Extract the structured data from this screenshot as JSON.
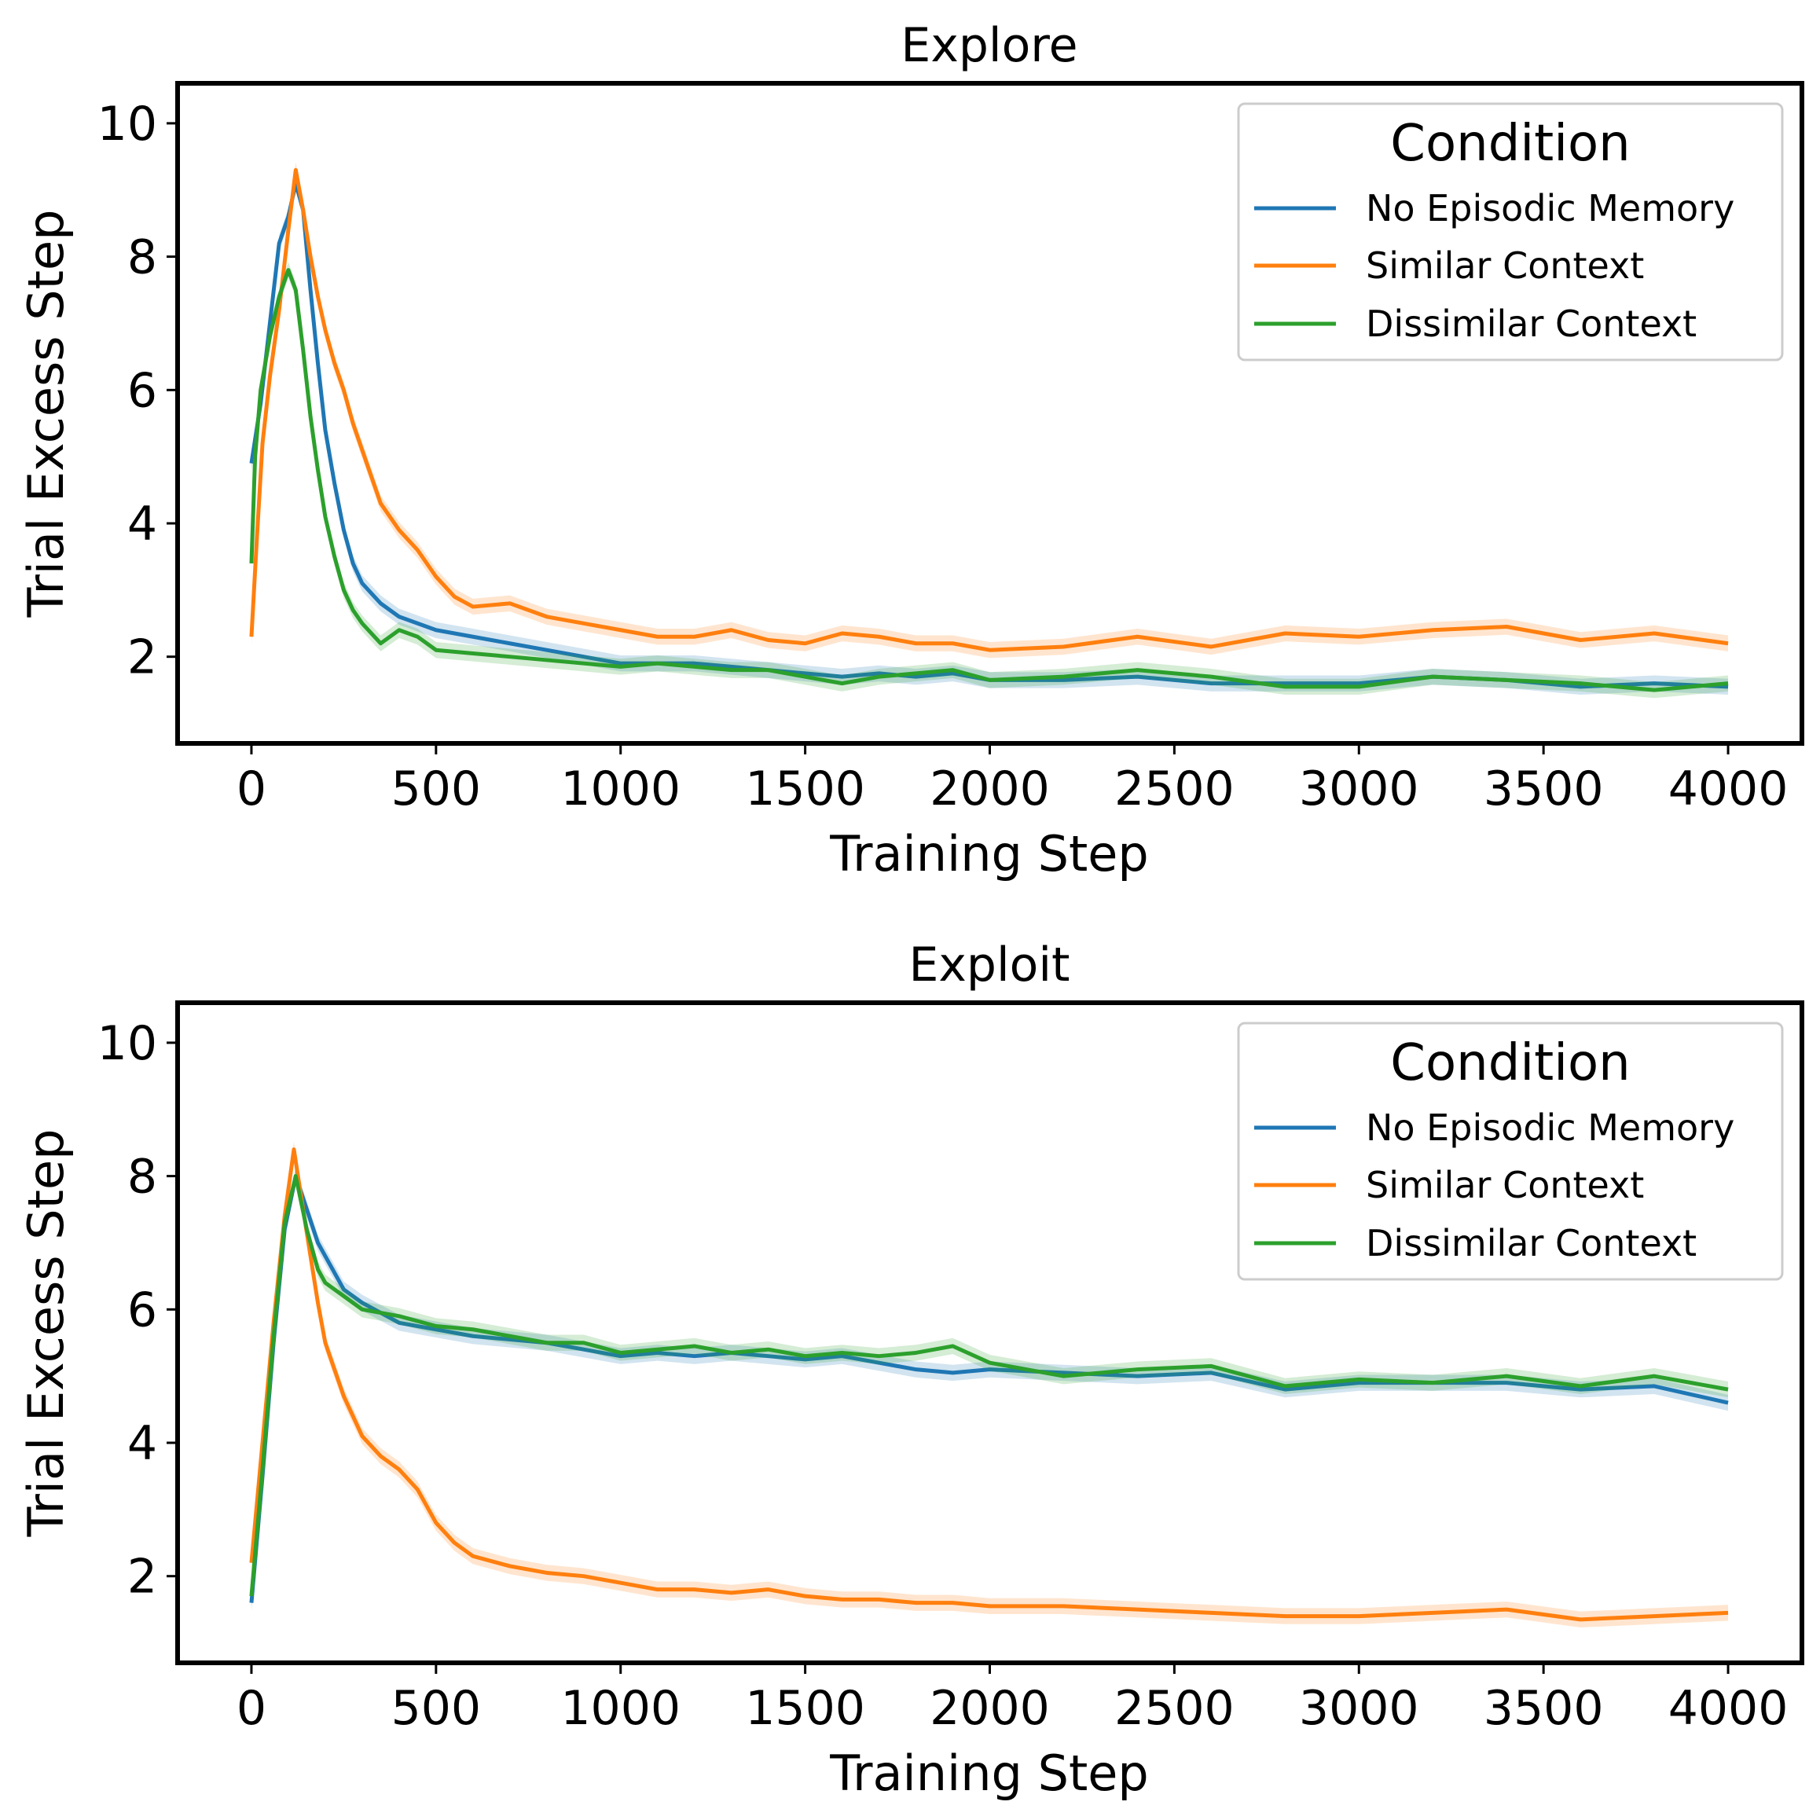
{
  "colors": {
    "no_episodic": "#1f77b4",
    "similar": "#ff7f0e",
    "dissimilar": "#2ca02c"
  },
  "chart_data": [
    {
      "type": "line",
      "title": "Explore",
      "xlabel": "Training Step",
      "ylabel": "Trial Excess Step",
      "xlim": [
        -200,
        4200
      ],
      "ylim": [
        0.7,
        10.6
      ],
      "xticks": [
        "0",
        "500",
        "1000",
        "1500",
        "2000",
        "2500",
        "3000",
        "3500",
        "4000"
      ],
      "yticks": [
        "2",
        "4",
        "6",
        "8",
        "10"
      ],
      "legend": {
        "title": "Condition",
        "position": "top-right"
      },
      "series": [
        {
          "name": "No Episodic Memory",
          "color": "no_episodic",
          "x": [
            0,
            25,
            50,
            75,
            100,
            120,
            140,
            160,
            180,
            200,
            225,
            250,
            275,
            300,
            350,
            400,
            450,
            500,
            600,
            700,
            800,
            900,
            1000,
            1100,
            1200,
            1300,
            1400,
            1500,
            1600,
            1700,
            1800,
            1900,
            2000,
            2200,
            2400,
            2600,
            2800,
            3000,
            3200,
            3400,
            3600,
            3800,
            4000
          ],
          "y": [
            4.9,
            5.8,
            7.0,
            8.2,
            8.6,
            9.1,
            8.7,
            7.5,
            6.4,
            5.4,
            4.6,
            3.9,
            3.4,
            3.1,
            2.8,
            2.6,
            2.5,
            2.4,
            2.3,
            2.2,
            2.1,
            2.0,
            1.9,
            1.9,
            1.9,
            1.85,
            1.8,
            1.75,
            1.7,
            1.75,
            1.7,
            1.75,
            1.65,
            1.65,
            1.7,
            1.6,
            1.6,
            1.6,
            1.7,
            1.65,
            1.55,
            1.6,
            1.55
          ]
        },
        {
          "name": "Similar Context",
          "color": "similar",
          "x": [
            0,
            15,
            30,
            50,
            75,
            100,
            120,
            140,
            160,
            180,
            200,
            225,
            250,
            275,
            300,
            350,
            400,
            450,
            500,
            550,
            600,
            700,
            800,
            900,
            1000,
            1100,
            1200,
            1300,
            1400,
            1500,
            1600,
            1700,
            1800,
            1900,
            2000,
            2200,
            2400,
            2600,
            2800,
            3000,
            3200,
            3400,
            3600,
            3800,
            4000
          ],
          "y": [
            2.3,
            3.8,
            5.2,
            6.2,
            7.2,
            8.4,
            9.3,
            8.7,
            8.0,
            7.4,
            6.9,
            6.4,
            6.0,
            5.5,
            5.1,
            4.3,
            3.9,
            3.6,
            3.2,
            2.9,
            2.75,
            2.8,
            2.6,
            2.5,
            2.4,
            2.3,
            2.3,
            2.4,
            2.25,
            2.2,
            2.35,
            2.3,
            2.2,
            2.2,
            2.1,
            2.15,
            2.3,
            2.15,
            2.35,
            2.3,
            2.4,
            2.45,
            2.25,
            2.35,
            2.2
          ]
        },
        {
          "name": "Dissimilar Context",
          "color": "dissimilar",
          "x": [
            0,
            10,
            25,
            50,
            75,
            100,
            120,
            140,
            160,
            180,
            200,
            225,
            250,
            275,
            300,
            350,
            400,
            450,
            500,
            600,
            700,
            800,
            900,
            1000,
            1100,
            1200,
            1300,
            1400,
            1500,
            1600,
            1700,
            1800,
            1900,
            2000,
            2200,
            2400,
            2600,
            2800,
            3000,
            3200,
            3400,
            3600,
            3800,
            4000
          ],
          "y": [
            3.4,
            5.0,
            6.0,
            6.8,
            7.4,
            7.8,
            7.5,
            6.6,
            5.6,
            4.8,
            4.1,
            3.5,
            3.0,
            2.7,
            2.5,
            2.2,
            2.4,
            2.3,
            2.1,
            2.05,
            2.0,
            1.95,
            1.9,
            1.85,
            1.9,
            1.85,
            1.8,
            1.8,
            1.7,
            1.6,
            1.7,
            1.75,
            1.8,
            1.65,
            1.7,
            1.8,
            1.7,
            1.55,
            1.55,
            1.7,
            1.65,
            1.6,
            1.5,
            1.6
          ]
        }
      ]
    },
    {
      "type": "line",
      "title": "Exploit",
      "xlabel": "Training Step",
      "ylabel": "Trial Excess Step",
      "xlim": [
        -200,
        4200
      ],
      "ylim": [
        0.7,
        10.6
      ],
      "xticks": [
        "0",
        "500",
        "1000",
        "1500",
        "2000",
        "2500",
        "3000",
        "3500",
        "4000"
      ],
      "yticks": [
        "2",
        "4",
        "6",
        "8",
        "10"
      ],
      "legend": {
        "title": "Condition",
        "position": "top-right"
      },
      "series": [
        {
          "name": "No Episodic Memory",
          "color": "no_episodic",
          "x": [
            0,
            30,
            60,
            90,
            120,
            150,
            180,
            200,
            250,
            300,
            400,
            500,
            600,
            700,
            800,
            900,
            1000,
            1100,
            1200,
            1300,
            1400,
            1500,
            1600,
            1700,
            1800,
            1900,
            2000,
            2200,
            2400,
            2600,
            2800,
            3000,
            3200,
            3400,
            3600,
            3800,
            4000
          ],
          "y": [
            1.6,
            3.5,
            5.5,
            7.2,
            8.0,
            7.5,
            7.0,
            6.8,
            6.3,
            6.1,
            5.8,
            5.7,
            5.6,
            5.55,
            5.5,
            5.4,
            5.3,
            5.35,
            5.3,
            5.35,
            5.3,
            5.25,
            5.3,
            5.2,
            5.1,
            5.05,
            5.1,
            5.05,
            5.0,
            5.05,
            4.8,
            4.9,
            4.9,
            4.9,
            4.8,
            4.85,
            4.6
          ]
        },
        {
          "name": "Similar Context",
          "color": "similar",
          "x": [
            0,
            30,
            60,
            90,
            115,
            140,
            160,
            180,
            200,
            225,
            250,
            275,
            300,
            350,
            400,
            450,
            500,
            550,
            600,
            700,
            800,
            900,
            1000,
            1100,
            1200,
            1300,
            1400,
            1500,
            1600,
            1700,
            1800,
            1900,
            2000,
            2200,
            2400,
            2600,
            2800,
            3000,
            3200,
            3400,
            3600,
            3800,
            4000
          ],
          "y": [
            2.2,
            4.0,
            5.8,
            7.4,
            8.4,
            7.5,
            6.8,
            6.1,
            5.5,
            5.1,
            4.7,
            4.4,
            4.1,
            3.8,
            3.6,
            3.3,
            2.8,
            2.5,
            2.3,
            2.15,
            2.05,
            2.0,
            1.9,
            1.8,
            1.8,
            1.75,
            1.8,
            1.7,
            1.65,
            1.65,
            1.6,
            1.6,
            1.55,
            1.55,
            1.5,
            1.45,
            1.4,
            1.4,
            1.45,
            1.5,
            1.35,
            1.4,
            1.45
          ]
        },
        {
          "name": "Dissimilar Context",
          "color": "dissimilar",
          "x": [
            0,
            30,
            60,
            90,
            120,
            150,
            180,
            200,
            250,
            300,
            400,
            500,
            600,
            700,
            800,
            900,
            1000,
            1100,
            1200,
            1300,
            1400,
            1500,
            1600,
            1700,
            1800,
            1900,
            2000,
            2200,
            2400,
            2600,
            2800,
            3000,
            3200,
            3400,
            3600,
            3800,
            4000
          ],
          "y": [
            1.7,
            3.6,
            5.6,
            7.3,
            8.0,
            7.2,
            6.6,
            6.4,
            6.2,
            6.0,
            5.9,
            5.75,
            5.7,
            5.6,
            5.5,
            5.5,
            5.35,
            5.4,
            5.45,
            5.35,
            5.4,
            5.3,
            5.35,
            5.3,
            5.35,
            5.45,
            5.2,
            5.0,
            5.1,
            5.15,
            4.85,
            4.95,
            4.9,
            5.0,
            4.85,
            5.0,
            4.8
          ]
        }
      ]
    }
  ]
}
